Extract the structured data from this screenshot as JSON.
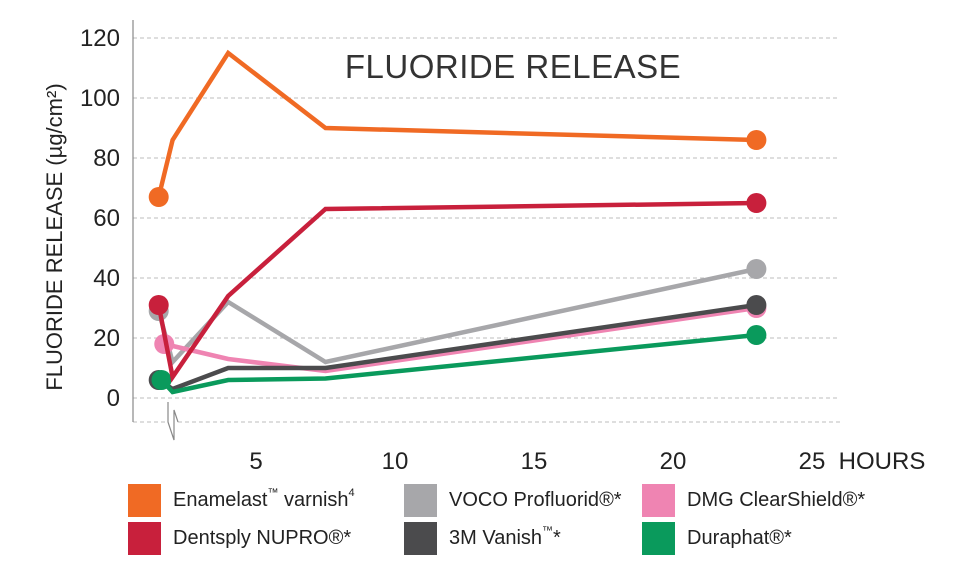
{
  "chart_data": {
    "type": "line",
    "title": "FLUORIDE RELEASE",
    "ylabel": "FLUORIDE RELEASE (µg/cm²)",
    "xlabel": "HOURS",
    "x_ticks": [
      "5",
      "10",
      "15",
      "20",
      "25"
    ],
    "x_tick_values": [
      5,
      10,
      15,
      20,
      25
    ],
    "y_ticks": [
      "0",
      "20",
      "40",
      "60",
      "80",
      "100",
      "120"
    ],
    "y_tick_values": [
      0,
      20,
      40,
      60,
      80,
      100,
      120
    ],
    "ylim": [
      -8,
      122
    ],
    "xlim": [
      1,
      27
    ],
    "grid": true,
    "axis_break": true,
    "legend_position": "bottom",
    "series": [
      {
        "name": "Enamelast™ varnish⁴",
        "label_main": "Enamelast",
        "label_tm": "™",
        "label_rest": " varnish",
        "label_sup": "4",
        "color": "#f06a24",
        "x": [
          1.5,
          2.0,
          4.0,
          7.5,
          23
        ],
        "y": [
          67,
          86,
          115,
          90,
          86
        ]
      },
      {
        "name": "Dentsply NUPRO®*",
        "label_main": "Dentsply NUPRO",
        "label_tm": "",
        "label_rest": "®*",
        "label_sup": "",
        "color": "#c8203c",
        "x": [
          1.5,
          2.0,
          4.0,
          7.5,
          23
        ],
        "y": [
          31,
          7,
          34,
          63,
          65
        ]
      },
      {
        "name": "VOCO Profluorid®*",
        "label_main": "VOCO Profluorid",
        "label_tm": "",
        "label_rest": "®*",
        "label_sup": "",
        "color": "#a7a7aa",
        "x": [
          1.5,
          2.0,
          4.0,
          7.5,
          23
        ],
        "y": [
          29,
          12,
          32,
          12,
          43
        ]
      },
      {
        "name": "3M Vanish™*",
        "label_main": "3M Vanish",
        "label_tm": "™",
        "label_rest": "*",
        "label_sup": "",
        "color": "#4b4b4d",
        "x": [
          1.5,
          2.0,
          4.0,
          7.5,
          23
        ],
        "y": [
          6,
          3,
          10,
          10,
          31
        ]
      },
      {
        "name": "DMG ClearShield®*",
        "label_main": "DMG ClearShield",
        "label_tm": "",
        "label_rest": "®*",
        "label_sup": "",
        "color": "#ef84b2",
        "x": [
          1.7,
          4.0,
          7.5,
          23
        ],
        "y": [
          18,
          13,
          9,
          30
        ]
      },
      {
        "name": "Duraphat®*",
        "label_main": "Duraphat",
        "label_tm": "",
        "label_rest": "®*",
        "label_sup": "",
        "color": "#0a9a5c",
        "x": [
          1.6,
          2.0,
          4.0,
          7.5,
          23
        ],
        "y": [
          6,
          2,
          6,
          6.5,
          21
        ]
      }
    ],
    "legend_order": [
      0,
      2,
      4,
      1,
      3,
      5
    ]
  }
}
